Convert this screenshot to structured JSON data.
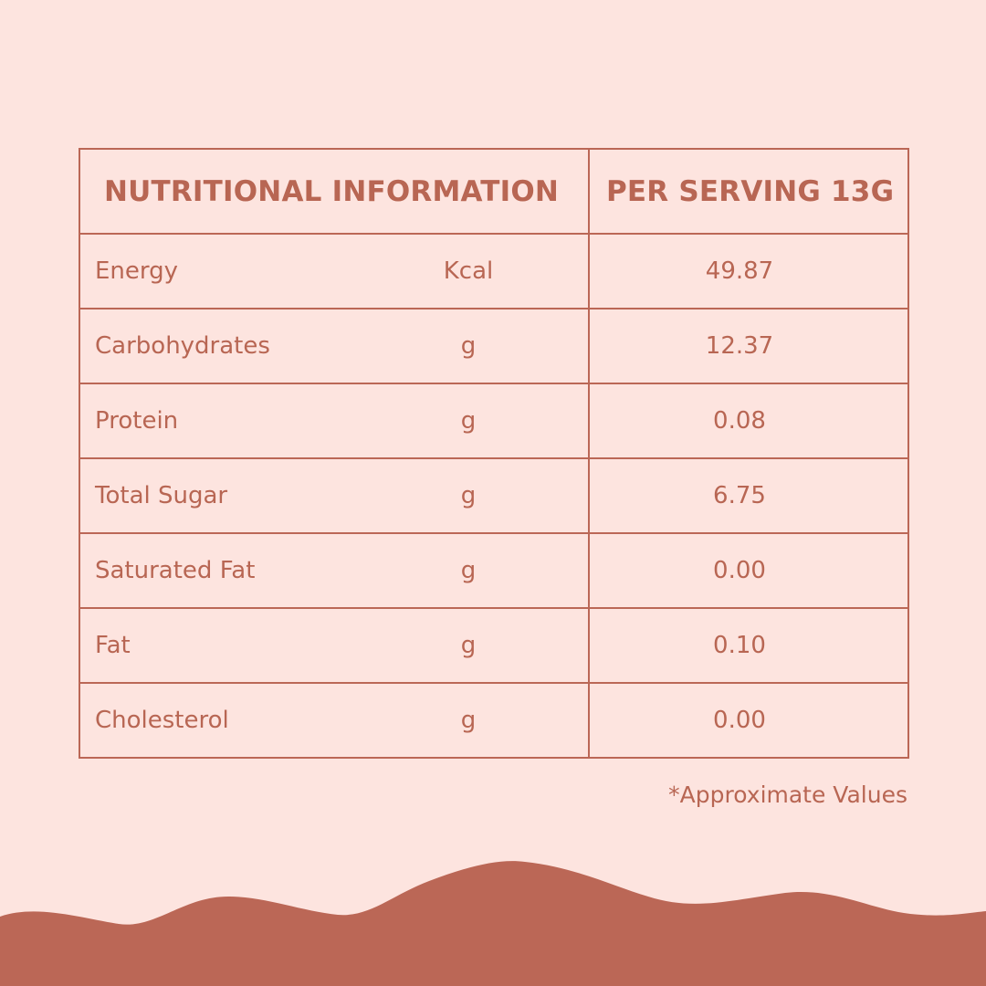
{
  "table": {
    "headers": [
      "NUTRITIONAL INFORMATION",
      "PER SERVING 13G"
    ],
    "rows": [
      {
        "name": "Energy",
        "unit": "Kcal",
        "value": "49.87"
      },
      {
        "name": "Carbohydrates",
        "unit": "g",
        "value": "12.37"
      },
      {
        "name": "Protein",
        "unit": "g",
        "value": "0.08"
      },
      {
        "name": "Total Sugar",
        "unit": "g",
        "value": "6.75"
      },
      {
        "name": "Saturated Fat",
        "unit": "g",
        "value": "0.00"
      },
      {
        "name": "Fat",
        "unit": "g",
        "value": "0.10"
      },
      {
        "name": "Cholesterol",
        "unit": "g",
        "value": "0.00"
      }
    ]
  },
  "footnote": "*Approximate Values",
  "colors": {
    "background": "#fde4df",
    "accent": "#bb6756"
  }
}
